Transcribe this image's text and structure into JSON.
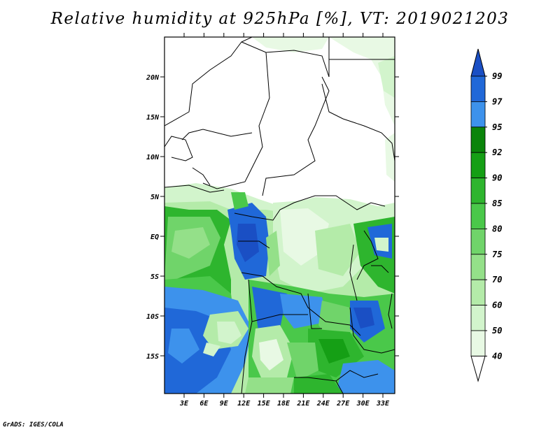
{
  "title": "Relative humidity at 925hPa [%], VT: 2019021203",
  "credit": "GrADS: IGES/COLA",
  "map": {
    "lat_labels": [
      "20N",
      "15N",
      "10N",
      "5N",
      "EQ",
      "5S",
      "10S",
      "15S"
    ],
    "lon_labels": [
      "3E",
      "6E",
      "9E",
      "12E",
      "15E",
      "18E",
      "21E",
      "24E",
      "27E",
      "30E",
      "33E"
    ],
    "colors": {
      "dry": "#ffffff",
      "c40": "#e8f9e4",
      "c50": "#d2f4cc",
      "c60": "#b4eba9",
      "c70": "#94e089",
      "c75": "#70d46a",
      "c80": "#4ac84a",
      "c85": "#2eb52e",
      "c90": "#159f15",
      "c92": "#0a840a",
      "c95": "#3d92ec",
      "c97": "#2068d8",
      "c99": "#1a4fc4",
      "border": "#000000"
    }
  },
  "colorbar": {
    "levels": [
      "99",
      "97",
      "95",
      "92",
      "90",
      "85",
      "80",
      "75",
      "70",
      "60",
      "50",
      "40"
    ],
    "colors": [
      "#1a4fc4",
      "#2068d8",
      "#3d92ec",
      "#0a840a",
      "#159f15",
      "#2eb52e",
      "#4ac84a",
      "#70d46a",
      "#94e089",
      "#b4eba9",
      "#d2f4cc",
      "#e8f9e4",
      "#ffffff"
    ]
  }
}
